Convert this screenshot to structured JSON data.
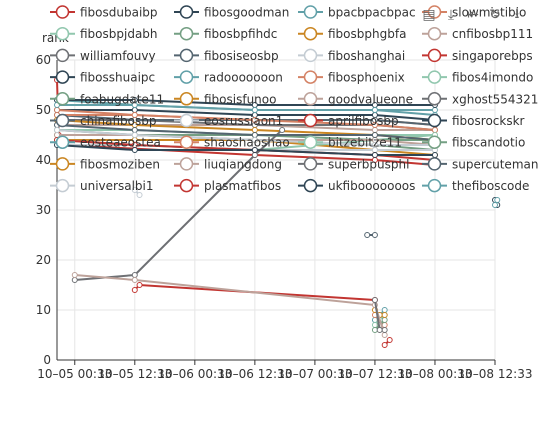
{
  "chart_data": {
    "type": "line",
    "ylabel": "rank",
    "ylim": [
      0,
      60
    ],
    "yticks": [
      0,
      10,
      20,
      30,
      40,
      50,
      60
    ],
    "x_tick_labels": [
      "10–05 00:33",
      "10–05 12:33",
      "10–06 00:33",
      "10–06 12:33",
      "10–07 00:33",
      "10–07 12:33",
      "10–08 00:33",
      "10–08 12:33"
    ],
    "x_range": [
      "10-04 21:00",
      "10-08 12:33"
    ],
    "legend_position": "top",
    "grid": true,
    "series": [
      {
        "name": "fibosdubaibp",
        "color": "#c23531",
        "points": [
          [
            "10-04 21:00",
            56
          ],
          [
            "10-04 21:20",
            45
          ],
          [
            "10-04 22:30",
            43
          ],
          [
            "10-06 12:33",
            41
          ],
          [
            "10-07 12:33",
            40
          ],
          [
            "10-08 00:33",
            39
          ]
        ]
      },
      {
        "name": "fibosgoodman",
        "color": "#2f4554",
        "points": [
          [
            "10-04 21:00",
            50
          ],
          [
            "10-05 12:33",
            50
          ],
          [
            "10-06 12:33",
            49
          ],
          [
            "10-07 12:33",
            49
          ],
          [
            "10-08 00:33",
            48
          ]
        ]
      },
      {
        "name": "bpacbpacbpac",
        "color": "#61a0a8",
        "points": [
          [
            "10-04 21:00",
            52
          ],
          [
            "10-05 12:33",
            51
          ],
          [
            "10-06 12:33",
            50
          ],
          [
            "10-07 12:33",
            50
          ],
          [
            "10-08 00:33",
            50
          ]
        ]
      },
      {
        "name": "slowmistibio",
        "color": "#d48265",
        "points": [
          [
            "10-04 21:00",
            50
          ],
          [
            "10-05 12:33",
            49
          ],
          [
            "10-06 12:33",
            48
          ],
          [
            "10-07 12:33",
            48
          ],
          [
            "10-08 00:33",
            47
          ]
        ]
      },
      {
        "name": "fibosbpjdabh",
        "color": "#91c7ae",
        "points": [
          [
            "10-04 21:00",
            46
          ],
          [
            "10-05 12:33",
            46
          ],
          [
            "10-06 12:33",
            45
          ],
          [
            "10-07 12:33",
            45
          ],
          [
            "10-08 00:33",
            45
          ]
        ]
      },
      {
        "name": "fibosbpfihdc",
        "color": "#749f83",
        "points": [
          [
            "10-04 21:00",
            45
          ],
          [
            "10-05 12:33",
            45
          ],
          [
            "10-06 12:33",
            44
          ],
          [
            "10-07 12:33",
            43
          ],
          [
            "10-08 00:33",
            42
          ]
        ]
      },
      {
        "name": "fibosbphgbfa",
        "color": "#ca8622",
        "points": [
          [
            "10-04 21:00",
            44
          ],
          [
            "10-05 12:33",
            44
          ],
          [
            "10-06 12:33",
            44
          ],
          [
            "10-07 12:33",
            42
          ],
          [
            "10-08 00:33",
            41
          ]
        ]
      },
      {
        "name": "cnfibosbp111",
        "color": "#bda29a",
        "points": [
          [
            "10-04 21:00",
            47
          ],
          [
            "10-05 12:33",
            47
          ],
          [
            "10-06 12:33",
            47
          ],
          [
            "10-07 12:33",
            46
          ],
          [
            "10-08 00:33",
            46
          ]
        ]
      },
      {
        "name": "williamfouvy",
        "color": "#6e7074",
        "points": [
          [
            "10-04 21:00",
            48
          ],
          [
            "10-05 12:33",
            48
          ],
          [
            "10-06 12:33",
            47
          ],
          [
            "10-07 12:33",
            47
          ],
          [
            "10-08 00:33",
            46
          ]
        ]
      },
      {
        "name": "fibosiseosbp",
        "color": "#546570",
        "points": [
          [
            "10-04 21:00",
            49
          ],
          [
            "10-05 12:33",
            48
          ],
          [
            "10-06 12:33",
            48
          ],
          [
            "10-07 12:33",
            48
          ],
          [
            "10-08 00:33",
            47
          ]
        ]
      },
      {
        "name": "fiboshanghai",
        "color": "#c4ccd3",
        "points": [
          [
            "10-04 21:00",
            43
          ],
          [
            "10-05 12:33",
            43
          ],
          [
            "10-06 12:33",
            42
          ],
          [
            "10-07 12:33",
            42
          ],
          [
            "10-08 00:33",
            42
          ]
        ]
      },
      {
        "name": "singaporebps",
        "color": "#c23531",
        "points": [
          [
            "10-05 12:33",
            14
          ],
          [
            "10-05 13:30",
            15
          ],
          [
            "10-07 12:33",
            12
          ]
        ]
      },
      {
        "name": "fibosshuaipc",
        "color": "#2f4554",
        "points": [
          [
            "10-04 21:00",
            52
          ],
          [
            "10-05 12:33",
            52
          ],
          [
            "10-06 12:33",
            51
          ],
          [
            "10-07 12:33",
            51
          ],
          [
            "10-08 00:33",
            51
          ]
        ]
      },
      {
        "name": "radooooooon",
        "color": "#61a0a8",
        "points": [
          [
            "10-04 21:00",
            51
          ],
          [
            "10-05 12:33",
            51
          ],
          [
            "10-06 12:33",
            50
          ],
          [
            "10-07 12:33",
            50
          ],
          [
            "10-08 00:33",
            49
          ]
        ]
      },
      {
        "name": "fibosphoenix",
        "color": "#d48265",
        "points": [
          [
            "10-04 21:00",
            49
          ],
          [
            "10-05 12:33",
            49
          ],
          [
            "10-06 12:33",
            48
          ],
          [
            "10-07 12:33",
            47
          ],
          [
            "10-08 00:33",
            46
          ]
        ]
      },
      {
        "name": "fibos4imondo",
        "color": "#91c7ae",
        "points": [
          [
            "10-04 21:00",
            44
          ],
          [
            "10-05 12:33",
            43
          ],
          [
            "10-06 12:33",
            42
          ],
          [
            "10-07 12:33",
            44
          ],
          [
            "10-08 00:33",
            45
          ]
        ]
      },
      {
        "name": "foabugdate11",
        "color": "#749f83",
        "points": [
          [
            "10-04 21:00",
            46
          ],
          [
            "10-05 12:33",
            45
          ],
          [
            "10-06 12:33",
            45
          ],
          [
            "10-07 12:33",
            44
          ],
          [
            "10-08 00:33",
            44
          ]
        ]
      },
      {
        "name": "fibosisfunoo",
        "color": "#ca8622",
        "points": [
          [
            "10-04 21:00",
            48
          ],
          [
            "10-05 12:33",
            47
          ],
          [
            "10-06 12:33",
            46
          ],
          [
            "10-07 12:33",
            45
          ],
          [
            "10-08 00:33",
            44
          ]
        ]
      },
      {
        "name": "goodvalueone",
        "color": "#bda29a",
        "points": [
          [
            "10-04 21:00",
            45
          ],
          [
            "10-05 12:33",
            45
          ],
          [
            "10-06 12:33",
            44
          ],
          [
            "10-07 12:33",
            44
          ],
          [
            "10-08 00:33",
            43
          ]
        ]
      },
      {
        "name": "xghost554321",
        "color": "#6e7074",
        "points": [
          [
            "10-05 00:33",
            16
          ],
          [
            "10-05 12:33",
            17
          ],
          [
            "10-06 12:33",
            41
          ],
          [
            "10-06 18:00",
            46
          ]
        ]
      },
      {
        "name": "chinafibosbp",
        "color": "#546570",
        "points": [
          [
            "10-04 21:00",
            47
          ],
          [
            "10-05 12:33",
            46
          ],
          [
            "10-06 12:33",
            45
          ],
          [
            "10-07 12:33",
            45
          ],
          [
            "10-08 00:33",
            44
          ]
        ]
      },
      {
        "name": "eosrussiaon1",
        "color": "#c4ccd3",
        "points": [
          [
            "10-04 21:00",
            46
          ],
          [
            "10-05 12:33",
            45
          ],
          [
            "10-06 12:33",
            44
          ],
          [
            "10-07 12:33",
            43
          ],
          [
            "10-08 00:33",
            43
          ]
        ]
      },
      {
        "name": "aprilfibosbp",
        "color": "#c23531",
        "points": [
          [
            "10-04 21:00",
            44
          ],
          [
            "10-05 12:33",
            43
          ],
          [
            "10-06 12:33",
            42
          ],
          [
            "10-07 12:33",
            41
          ],
          [
            "10-08 00:33",
            40
          ]
        ]
      },
      {
        "name": "fibosrockskr",
        "color": "#2f4554",
        "points": [
          [
            "10-04 21:00",
            43
          ],
          [
            "10-05 12:33",
            42
          ],
          [
            "10-06 12:33",
            42
          ],
          [
            "10-07 12:33",
            41
          ],
          [
            "10-08 00:33",
            41
          ]
        ]
      },
      {
        "name": "eosteaeostea",
        "color": "#61a0a8",
        "points": [
          [
            "10-07 12:33",
            8
          ],
          [
            "10-07 13:30",
            9
          ],
          [
            "10-07 14:30",
            10
          ]
        ]
      },
      {
        "name": "shaoshaoshao",
        "color": "#d48265",
        "points": [
          [
            "10-07 12:33",
            9
          ],
          [
            "10-07 13:30",
            8
          ],
          [
            "10-07 14:30",
            7
          ]
        ]
      },
      {
        "name": "bitzebitze11",
        "color": "#91c7ae",
        "points": [
          [
            "10-07 12:33",
            7
          ],
          [
            "10-07 13:30",
            8
          ],
          [
            "10-07 14:30",
            9
          ]
        ]
      },
      {
        "name": "fibscandotio",
        "color": "#749f83",
        "points": [
          [
            "10-07 12:33",
            6
          ],
          [
            "10-07 13:30",
            7
          ],
          [
            "10-07 14:30",
            8
          ]
        ]
      },
      {
        "name": "fibosmoziben",
        "color": "#ca8622",
        "points": [
          [
            "10-07 12:33",
            10
          ],
          [
            "10-07 13:30",
            9
          ],
          [
            "10-07 14:30",
            9
          ]
        ]
      },
      {
        "name": "liuqiangdong",
        "color": "#bda29a",
        "points": [
          [
            "10-05 00:33",
            17
          ],
          [
            "10-05 12:33",
            16
          ],
          [
            "10-07 12:33",
            11
          ],
          [
            "10-07 14:30",
            5
          ]
        ]
      },
      {
        "name": "superbpusphl",
        "color": "#6e7074",
        "points": [
          [
            "10-07 12:33",
            12
          ],
          [
            "10-07 13:30",
            6
          ],
          [
            "10-07 14:30",
            6
          ]
        ]
      },
      {
        "name": "supercuteman",
        "color": "#546570",
        "points": [
          [
            "10-07 11:00",
            25
          ],
          [
            "10-07 12:33",
            25
          ]
        ]
      },
      {
        "name": "universalbi1",
        "color": "#c4ccd3",
        "points": [
          [
            "10-05 12:33",
            34
          ],
          [
            "10-05 13:30",
            33
          ]
        ]
      },
      {
        "name": "plasmatfibos",
        "color": "#c23531",
        "points": [
          [
            "10-07 14:30",
            3
          ],
          [
            "10-07 15:30",
            4
          ]
        ]
      },
      {
        "name": "ukfibooooooos",
        "color": "#2f4554",
        "points": [
          [
            "10-08 12:33",
            32
          ],
          [
            "10-08 13:00",
            31
          ]
        ]
      },
      {
        "name": "thefiboscode",
        "color": "#61a0a8",
        "points": [
          [
            "10-08 12:33",
            31
          ],
          [
            "10-08 13:00",
            32
          ]
        ]
      }
    ]
  },
  "toolbox": {
    "icons": [
      "data-view-icon",
      "zoom-icon",
      "zoom-reset-icon",
      "restore-icon",
      "save-image-icon"
    ]
  }
}
